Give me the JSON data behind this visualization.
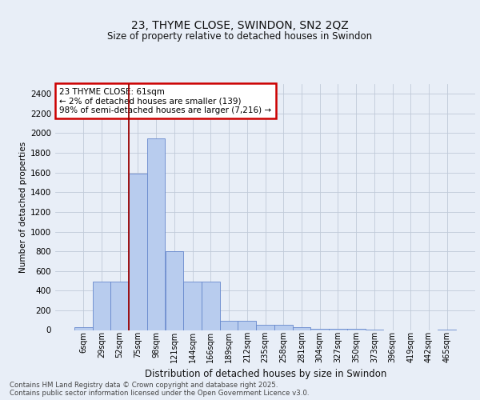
{
  "title": "23, THYME CLOSE, SWINDON, SN2 2QZ",
  "subtitle": "Size of property relative to detached houses in Swindon",
  "xlabel": "Distribution of detached houses by size in Swindon",
  "ylabel": "Number of detached properties",
  "background_color": "#e8eef7",
  "bar_color": "#b8ccee",
  "bar_edge_color": "#6688cc",
  "vline_color": "#990000",
  "vline_position": 2.5,
  "categories": [
    "6sqm",
    "29sqm",
    "52sqm",
    "75sqm",
    "98sqm",
    "121sqm",
    "144sqm",
    "166sqm",
    "189sqm",
    "212sqm",
    "235sqm",
    "258sqm",
    "281sqm",
    "304sqm",
    "327sqm",
    "350sqm",
    "373sqm",
    "396sqm",
    "419sqm",
    "442sqm",
    "465sqm"
  ],
  "values": [
    30,
    490,
    490,
    1590,
    1950,
    800,
    490,
    490,
    95,
    95,
    50,
    50,
    30,
    15,
    15,
    10,
    5,
    0,
    0,
    0,
    5
  ],
  "ylim": [
    0,
    2500
  ],
  "yticks": [
    0,
    200,
    400,
    600,
    800,
    1000,
    1200,
    1400,
    1600,
    1800,
    2000,
    2200,
    2400
  ],
  "annotation_text": "23 THYME CLOSE: 61sqm\n← 2% of detached houses are smaller (139)\n98% of semi-detached houses are larger (7,216) →",
  "annotation_box_facecolor": "#ffffff",
  "annotation_box_edgecolor": "#cc0000",
  "footer_line1": "Contains HM Land Registry data © Crown copyright and database right 2025.",
  "footer_line2": "Contains public sector information licensed under the Open Government Licence v3.0.",
  "grid_color": "#c0cad8",
  "title_fontsize": 10,
  "subtitle_fontsize": 8.5,
  "ylabel_fontsize": 7.5,
  "xlabel_fontsize": 8.5,
  "tick_fontsize": 7,
  "footer_fontsize": 6.2
}
